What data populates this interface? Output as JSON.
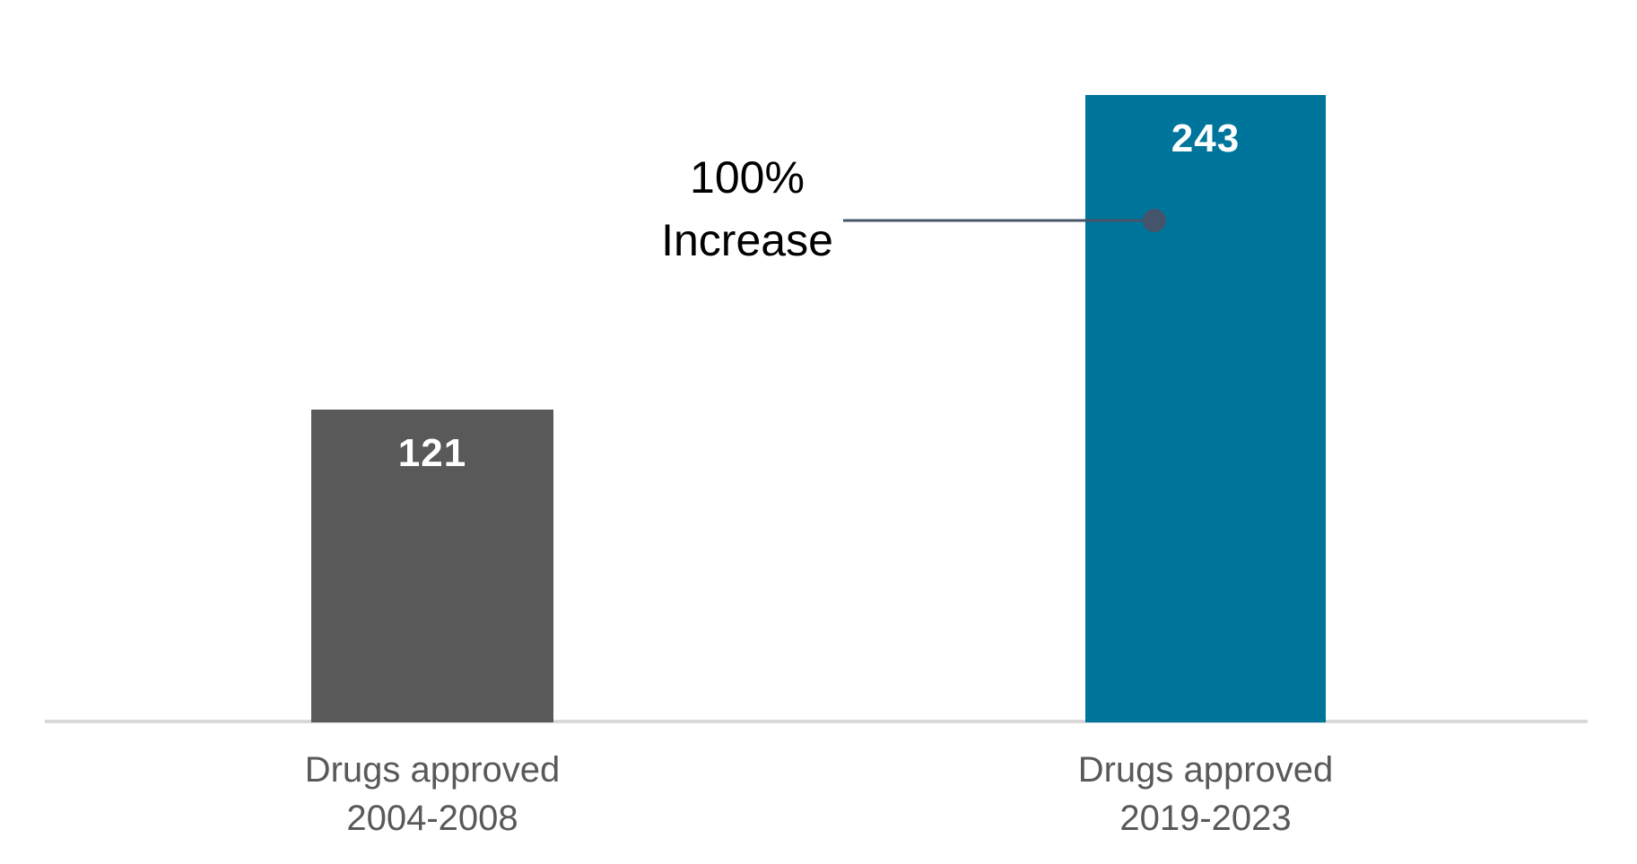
{
  "chart_data": {
    "type": "bar",
    "categories": [
      "Drugs approved 2004-2008",
      "Drugs approved 2019-2023"
    ],
    "values": [
      121,
      243
    ],
    "data_labels": [
      "121",
      "243"
    ],
    "title": "",
    "xlabel": "",
    "ylabel": "",
    "ylim": [
      0,
      243
    ],
    "y_axis_visible": false,
    "gridlines": false,
    "legend": false,
    "bar_colors": [
      "#595959",
      "#00759C"
    ],
    "annotation": {
      "text": "100% Increase",
      "points_to": "Drugs approved 2019-2023"
    }
  },
  "bars": [
    {
      "value_label": "121",
      "category_line1": "Drugs approved",
      "category_line2": "2004-2008",
      "color": "#595959"
    },
    {
      "value_label": "243",
      "category_line1": "Drugs approved",
      "category_line2": "2019-2023",
      "color": "#00759C"
    }
  ],
  "annotation": {
    "line1": "100%",
    "line2": "Increase"
  },
  "colors": {
    "background": "#FFFFFF",
    "data_label_text": "#FFFFFF",
    "category_label_text": "#595959",
    "annotation_text": "#000000",
    "axis_line": "#D9D9D9",
    "leader_line": "#44546A",
    "leader_dot": "#44546A"
  }
}
